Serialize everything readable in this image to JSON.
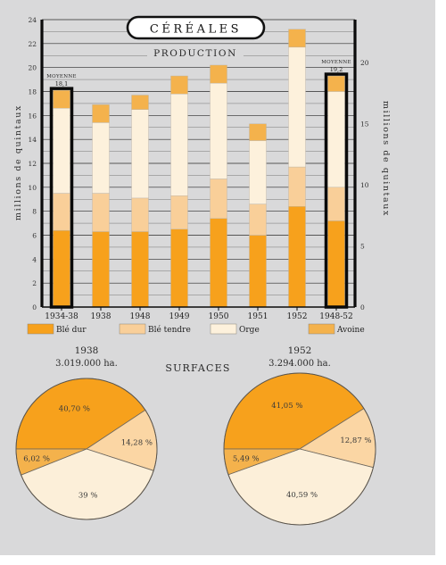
{
  "title": "CÉRÉALES",
  "colors": {
    "background": "#d9d9da",
    "grid": "#2a2a2a",
    "ble_dur": "#f7a11c",
    "ble_tendre": "#f9cf99",
    "orge": "#fdf1dc",
    "avoine": "#f4b24c",
    "pie_ble_tendre": "#fbd6a4",
    "pie_orge": "#fcefd9"
  },
  "chart_data": [
    {
      "type": "bar",
      "stacked": true,
      "title": "PRODUCTION",
      "ylabel": "millions de quintaux",
      "ylabel_right": "millions de quintaux",
      "ylim": [
        0,
        24
      ],
      "yticks": [
        0,
        2,
        4,
        6,
        8,
        10,
        12,
        14,
        16,
        18,
        20,
        22,
        24
      ],
      "ylim_right": [
        0,
        23.5
      ],
      "yticks_right": [
        0,
        5,
        10,
        15,
        20
      ],
      "grid": true,
      "legend_position": "bottom",
      "categories": [
        "1934-38",
        "1938",
        "1948",
        "1949",
        "1950",
        "1951",
        "1952",
        "1948-52"
      ],
      "series": [
        {
          "name": "Blé dur",
          "color_key": "ble_dur",
          "values": [
            6.4,
            6.3,
            6.3,
            6.5,
            7.4,
            6.0,
            8.4,
            7.2
          ]
        },
        {
          "name": "Blé tendre",
          "color_key": "ble_tendre",
          "values": [
            3.1,
            3.2,
            2.8,
            2.8,
            3.3,
            2.6,
            3.3,
            2.8
          ]
        },
        {
          "name": "Orge",
          "color_key": "orge",
          "values": [
            7.1,
            5.9,
            7.4,
            8.5,
            8.0,
            5.3,
            10.0,
            8.0
          ]
        },
        {
          "name": "Avoine",
          "color_key": "avoine",
          "values": [
            1.5,
            1.5,
            1.2,
            1.5,
            1.5,
            1.4,
            1.5,
            1.3
          ]
        }
      ],
      "annotations": [
        {
          "category": "1934-38",
          "label": "MOYENNE",
          "value_label": "18,1"
        },
        {
          "category": "1948-52",
          "label": "MOYENNE",
          "value_label": "19,2"
        }
      ],
      "highlighted_categories": [
        "1934-38",
        "1948-52"
      ]
    },
    {
      "type": "pie",
      "title": "1938",
      "subtitle": "3.019.000 ha.",
      "slices": [
        {
          "label": "Blé dur",
          "value": 40.7,
          "value_label": "40,70 %",
          "color_key": "ble_dur"
        },
        {
          "label": "Blé tendre",
          "value": 14.28,
          "value_label": "14,28 %",
          "color_key": "pie_ble_tendre"
        },
        {
          "label": "Orge",
          "value": 39.0,
          "value_label": "39 %",
          "color_key": "pie_orge"
        },
        {
          "label": "Avoine",
          "value": 6.02,
          "value_label": "6,02 %",
          "color_key": "avoine"
        }
      ]
    },
    {
      "type": "pie",
      "title": "1952",
      "subtitle": "3.294.000 ha.",
      "slices": [
        {
          "label": "Blé dur",
          "value": 41.05,
          "value_label": "41,05 %",
          "color_key": "ble_dur"
        },
        {
          "label": "Blé tendre",
          "value": 12.87,
          "value_label": "12,87 %",
          "color_key": "pie_ble_tendre"
        },
        {
          "label": "Orge",
          "value": 40.59,
          "value_label": "40,59 %",
          "color_key": "pie_orge"
        },
        {
          "label": "Avoine",
          "value": 5.49,
          "value_label": "5,49 %",
          "color_key": "avoine"
        }
      ]
    }
  ],
  "surfaces_label": "SURFACES"
}
